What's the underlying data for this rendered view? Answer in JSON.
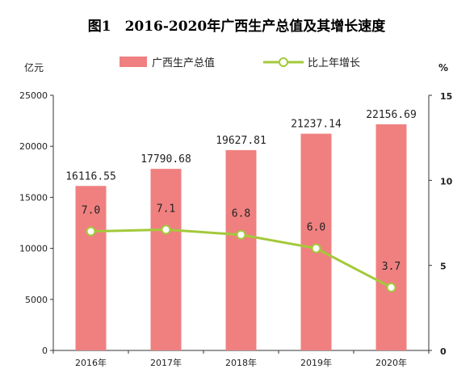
{
  "chart_data": {
    "type": "bar",
    "title": "图1　2016-2020年广西生产总值及其增长速度",
    "categories": [
      "2016年",
      "2017年",
      "2018年",
      "2019年",
      "2020年"
    ],
    "series": [
      {
        "name": "广西生产总值",
        "type": "bar",
        "axis": "left",
        "values": [
          16116.55,
          17790.68,
          19627.81,
          21237.14,
          22156.69
        ],
        "labels": [
          "16116.55",
          "17790.68",
          "19627.81",
          "21237.14",
          "22156.69"
        ],
        "color": "#f08080"
      },
      {
        "name": "比上年增长",
        "type": "line",
        "axis": "right",
        "values": [
          7.0,
          7.1,
          6.8,
          6.0,
          3.7
        ],
        "labels": [
          "7.0",
          "7.1",
          "6.8",
          "6.0",
          "3.7"
        ],
        "color": "#a3c93a"
      }
    ],
    "y_left": {
      "unit": "亿元",
      "ylim": [
        0,
        25000
      ],
      "ticks": [
        "0",
        "5000",
        "10000",
        "15000",
        "20000",
        "25000"
      ]
    },
    "y_right": {
      "unit": "%",
      "ylim": [
        0,
        15
      ],
      "ticks": [
        "0",
        "5",
        "10",
        "15"
      ]
    },
    "grid": false,
    "legend_position": "top-center"
  }
}
